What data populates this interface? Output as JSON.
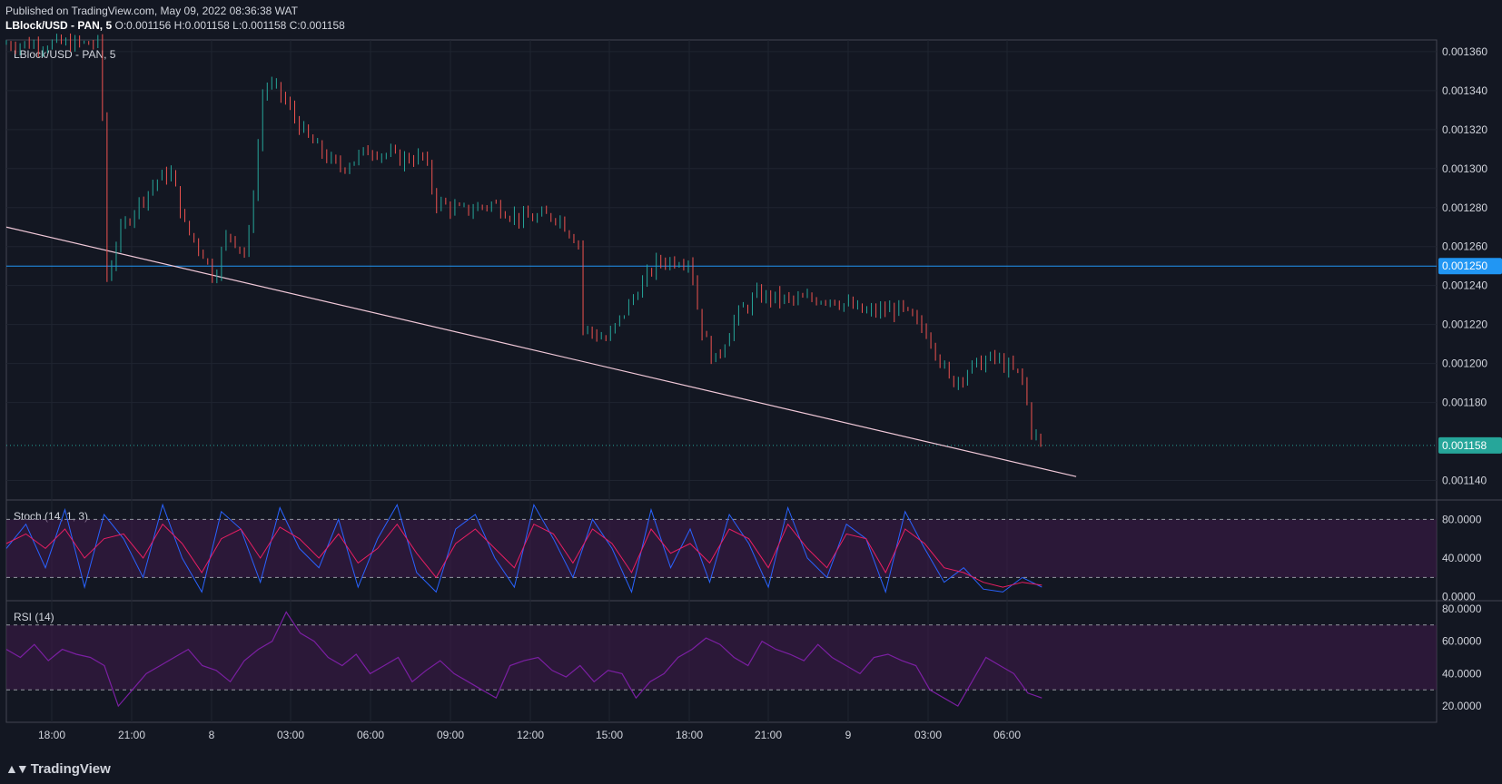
{
  "header": {
    "published": "Published on TradingView.com, May 09, 2022 08:36:38 WAT",
    "symbol_line": "LBlock/USD - PAN, 5",
    "ohlc": "O:0.001156 H:0.001158 L:0.001158 C:0.001158"
  },
  "brand": {
    "name": "TradingView",
    "icon": "tradingview-logo-icon"
  },
  "colors": {
    "background": "#131722",
    "grid": "#1f2430",
    "up": "#26a69a",
    "down": "#ef5350",
    "hline": "#2196f3",
    "trendline": "#f0c8d8",
    "stoch_k": "#2962ff",
    "stoch_d": "#e91e63",
    "rsi": "#7b1fa2",
    "band": "#3f1a4a"
  },
  "chart_data": [
    {
      "type": "candlestick",
      "pane_label": "LBlock/USD - PAN, 5",
      "ylim": [
        0.00113,
        0.001366
      ],
      "x_ticks": [
        "18:00",
        "21:00",
        "8",
        "03:00",
        "06:00",
        "09:00",
        "12:00",
        "15:00",
        "18:00",
        "21:00",
        "9",
        "03:00",
        "06:00"
      ],
      "y_ticks": [
        "0.001360",
        "0.001340",
        "0.001320",
        "0.001300",
        "0.001280",
        "0.001260",
        "0.001240",
        "0.001220",
        "0.001200",
        "0.001180",
        "0.001140"
      ],
      "hline": {
        "value": 0.00125,
        "label": "0.001250"
      },
      "last_price": {
        "value": 0.001158,
        "label": "0.001158"
      },
      "trendline": {
        "from": [
          0.0,
          0.00127
        ],
        "to": [
          0.748,
          0.001142
        ]
      },
      "path": [
        [
          0.0,
          0.001364
        ],
        [
          0.066,
          0.001364
        ],
        [
          0.07,
          0.001242
        ],
        [
          0.078,
          0.001265
        ],
        [
          0.09,
          0.00128
        ],
        [
          0.105,
          0.001294
        ],
        [
          0.115,
          0.001298
        ],
        [
          0.125,
          0.00127
        ],
        [
          0.138,
          0.001256
        ],
        [
          0.145,
          0.001244
        ],
        [
          0.155,
          0.001268
        ],
        [
          0.168,
          0.001255
        ],
        [
          0.175,
          0.001304
        ],
        [
          0.18,
          0.001344
        ],
        [
          0.19,
          0.00134
        ],
        [
          0.21,
          0.001316
        ],
        [
          0.232,
          0.0013
        ],
        [
          0.255,
          0.00131
        ],
        [
          0.275,
          0.001305
        ],
        [
          0.292,
          0.001306
        ],
        [
          0.3,
          0.001283
        ],
        [
          0.318,
          0.001278
        ],
        [
          0.34,
          0.001282
        ],
        [
          0.36,
          0.001274
        ],
        [
          0.385,
          0.001276
        ],
        [
          0.4,
          0.001262
        ],
        [
          0.403,
          0.001218
        ],
        [
          0.42,
          0.001212
        ],
        [
          0.44,
          0.001236
        ],
        [
          0.455,
          0.001252
        ],
        [
          0.478,
          0.001254
        ],
        [
          0.485,
          0.00122
        ],
        [
          0.495,
          0.0012
        ],
        [
          0.51,
          0.001224
        ],
        [
          0.525,
          0.001235
        ],
        [
          0.55,
          0.001232
        ],
        [
          0.575,
          0.001234
        ],
        [
          0.6,
          0.001226
        ],
        [
          0.625,
          0.001228
        ],
        [
          0.645,
          0.001215
        ],
        [
          0.66,
          0.00119
        ],
        [
          0.675,
          0.001198
        ],
        [
          0.69,
          0.001203
        ],
        [
          0.71,
          0.001193
        ],
        [
          0.717,
          0.001165
        ],
        [
          0.724,
          0.001158
        ]
      ]
    },
    {
      "type": "line",
      "pane_label": "Stoch (14, 1, 3)",
      "ylim": [
        -4,
        100
      ],
      "y_ticks": [
        "80.0000",
        "40.0000",
        "0.0000"
      ],
      "bands": [
        20,
        80
      ],
      "series": [
        {
          "name": "%K",
          "values": [
            50,
            75,
            30,
            90,
            10,
            85,
            60,
            20,
            95,
            40,
            5,
            88,
            70,
            15,
            92,
            50,
            30,
            80,
            10,
            60,
            95,
            25,
            5,
            70,
            85,
            40,
            10,
            95,
            60,
            20,
            80,
            50,
            5,
            90,
            30,
            70,
            15,
            85,
            55,
            10,
            92,
            40,
            20,
            75,
            60,
            5,
            88,
            50,
            15,
            30,
            8,
            5,
            20,
            10
          ]
        },
        {
          "name": "%D",
          "values": [
            55,
            65,
            50,
            70,
            40,
            60,
            65,
            40,
            75,
            55,
            25,
            60,
            70,
            40,
            72,
            60,
            40,
            65,
            35,
            50,
            75,
            45,
            20,
            55,
            70,
            50,
            30,
            75,
            65,
            35,
            70,
            55,
            25,
            70,
            45,
            55,
            35,
            70,
            60,
            30,
            75,
            50,
            30,
            65,
            60,
            25,
            70,
            55,
            30,
            25,
            15,
            10,
            15,
            12
          ]
        }
      ]
    },
    {
      "type": "line",
      "pane_label": "RSI (14)",
      "ylim": [
        10,
        85
      ],
      "y_ticks": [
        "80.0000",
        "60.0000",
        "40.0000",
        "20.0000"
      ],
      "bands": [
        30,
        70
      ],
      "series": [
        {
          "name": "RSI",
          "values": [
            55,
            50,
            58,
            48,
            55,
            52,
            50,
            45,
            20,
            30,
            40,
            45,
            50,
            55,
            45,
            42,
            35,
            48,
            55,
            60,
            78,
            65,
            60,
            50,
            45,
            52,
            40,
            45,
            50,
            35,
            42,
            48,
            40,
            35,
            30,
            25,
            45,
            48,
            50,
            42,
            38,
            45,
            35,
            42,
            40,
            25,
            35,
            40,
            50,
            55,
            62,
            58,
            50,
            45,
            60,
            55,
            52,
            48,
            58,
            50,
            45,
            40,
            50,
            52,
            48,
            45,
            30,
            25,
            20,
            35,
            50,
            45,
            40,
            28,
            25
          ]
        }
      ]
    }
  ],
  "axis_labels": {
    "x": [
      "18:00",
      "21:00",
      "8",
      "03:00",
      "06:00",
      "09:00",
      "12:00",
      "15:00",
      "18:00",
      "21:00",
      "9",
      "03:00",
      "06:00"
    ],
    "price": [
      "0.001360",
      "0.001340",
      "0.001320",
      "0.001300",
      "0.001280",
      "0.001260",
      "0.001240",
      "0.001220",
      "0.001200",
      "0.001180",
      "0.001140"
    ],
    "stoch": [
      "80.0000",
      "40.0000",
      "0.0000"
    ],
    "rsi": [
      "80.0000",
      "60.0000",
      "40.0000",
      "20.0000"
    ]
  }
}
